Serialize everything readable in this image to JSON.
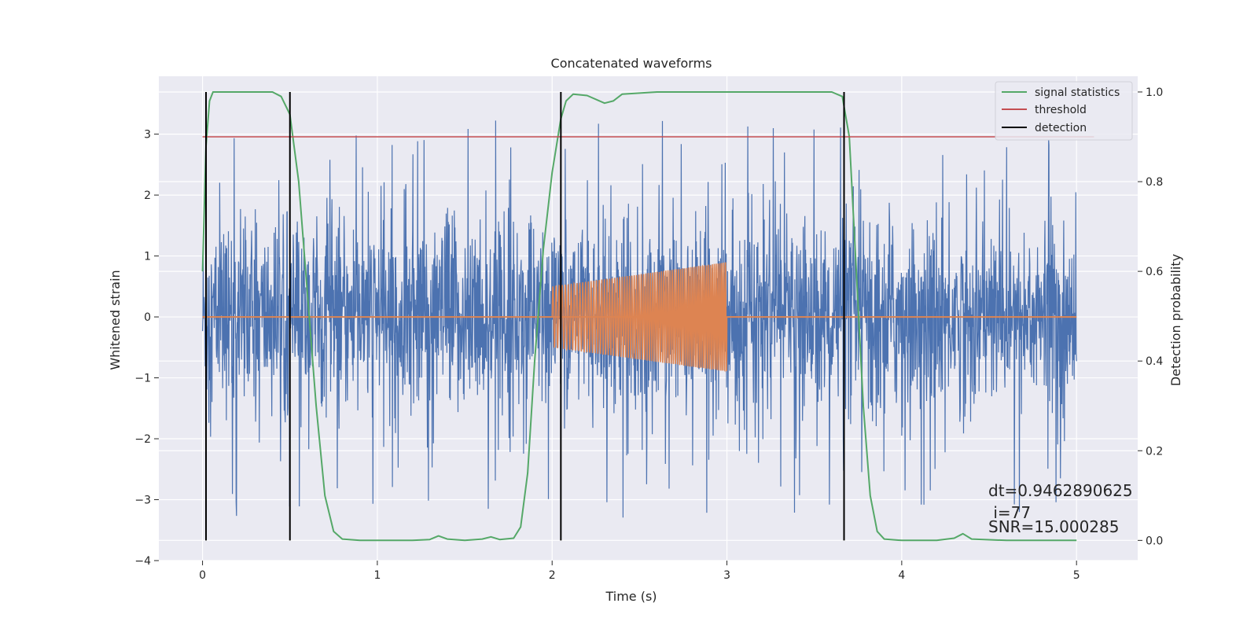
{
  "chart_data": {
    "type": "line",
    "title": "Concatenated waveforms",
    "xlabel": "Time (s)",
    "ylabel_left": "Whitened strain",
    "ylabel_right": "Detection probability",
    "xlim": [
      -0.25,
      5.35
    ],
    "ylim_left": [
      -4.0,
      3.95
    ],
    "ylim_right": [
      -0.045,
      1.035
    ],
    "x_ticks": [
      0,
      1,
      2,
      3,
      4,
      5
    ],
    "y_ticks_left": [
      -4,
      -3,
      -2,
      -1,
      0,
      1,
      2,
      3
    ],
    "y_ticks_right": [
      0.0,
      0.2,
      0.4,
      0.6,
      0.8,
      1.0
    ],
    "grid": true,
    "legend_position": "top-right",
    "colors": {
      "noisy_strain": "#4c72b0",
      "injected_waveform": "#dd8452",
      "signal_statistics": "#55a868",
      "threshold": "#c44e52",
      "detection": "#000000",
      "plot_background": "#eaeaf2",
      "grid": "#ffffff"
    },
    "series": [
      {
        "name": "signal statistics",
        "axis": "right",
        "x": [
          0.0,
          0.02,
          0.04,
          0.06,
          0.08,
          0.12,
          0.2,
          0.3,
          0.4,
          0.45,
          0.5,
          0.55,
          0.6,
          0.65,
          0.7,
          0.75,
          0.8,
          0.9,
          1.0,
          1.2,
          1.3,
          1.35,
          1.4,
          1.5,
          1.6,
          1.65,
          1.7,
          1.78,
          1.82,
          1.86,
          1.9,
          1.95,
          2.0,
          2.05,
          2.08,
          2.12,
          2.2,
          2.3,
          2.35,
          2.4,
          2.6,
          3.0,
          3.4,
          3.6,
          3.66,
          3.7,
          3.74,
          3.78,
          3.82,
          3.86,
          3.9,
          4.0,
          4.2,
          4.3,
          4.35,
          4.4,
          4.6,
          5.0
        ],
        "values": [
          0.6,
          0.88,
          0.98,
          1.0,
          1.0,
          1.0,
          1.0,
          1.0,
          1.0,
          0.99,
          0.95,
          0.8,
          0.55,
          0.3,
          0.1,
          0.02,
          0.003,
          0.0,
          0.0,
          0.0,
          0.002,
          0.01,
          0.003,
          0.0,
          0.003,
          0.008,
          0.002,
          0.005,
          0.03,
          0.15,
          0.4,
          0.65,
          0.82,
          0.94,
          0.98,
          0.995,
          0.992,
          0.975,
          0.98,
          0.995,
          1.0,
          1.0,
          1.0,
          1.0,
          0.99,
          0.9,
          0.6,
          0.3,
          0.1,
          0.02,
          0.003,
          0.0,
          0.0,
          0.005,
          0.015,
          0.003,
          0.0,
          0.0
        ]
      },
      {
        "name": "threshold",
        "axis": "right",
        "x": [
          0.0,
          5.1
        ],
        "values": [
          0.9,
          0.9
        ]
      },
      {
        "name": "detection",
        "axis": "right",
        "x_positions": [
          0.02,
          0.5,
          2.05,
          3.67
        ],
        "y_range": [
          0.0,
          1.0
        ]
      },
      {
        "name": "",
        "axis": "left",
        "description_type": "noisy_strain",
        "x_range": [
          0.0,
          5.0
        ],
        "amplitude": 0.75,
        "peak_max": 3.6,
        "peak_min": -3.65
      },
      {
        "name": "",
        "axis": "left",
        "description_type": "injected_waveform",
        "x_range": [
          2.0,
          3.0
        ],
        "amplitude_start": 0.5,
        "amplitude_end": 0.9
      }
    ],
    "legend": [
      {
        "label": "signal statistics",
        "color": "#55a868"
      },
      {
        "label": "threshold",
        "color": "#c44e52"
      },
      {
        "label": "detection",
        "color": "#000000"
      }
    ],
    "annotations": {
      "dt": "dt=0.9462890625",
      "i": " i=77",
      "snr": "SNR=15.000285"
    }
  }
}
